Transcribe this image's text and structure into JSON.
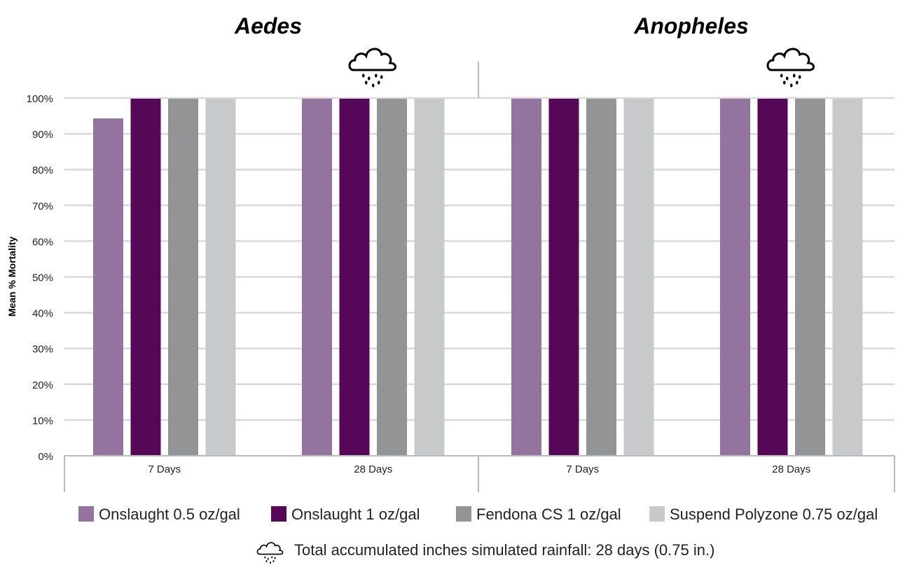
{
  "chart_data": {
    "type": "bar",
    "ylabel": "Mean % Mortality",
    "ylim": [
      0,
      100
    ],
    "yticks": [
      "0%",
      "10%",
      "20%",
      "30%",
      "40%",
      "50%",
      "60%",
      "70%",
      "80%",
      "90%",
      "100%"
    ],
    "grid": true,
    "legend_placement": "bottom",
    "panels": [
      {
        "title": "Aedes",
        "categories": [
          "7 Days",
          "28 Days"
        ],
        "rain_icon_on": "28 Days"
      },
      {
        "title": "Anopheles",
        "categories": [
          "7 Days",
          "28 Days"
        ],
        "rain_icon_on": "28 Days"
      }
    ],
    "series": [
      {
        "name": "Onslaught 0.5 oz/gal",
        "color": "#92749e",
        "values": [
          94.5,
          100,
          100,
          100
        ]
      },
      {
        "name": "Onslaught 1 oz/gal",
        "color": "#560757",
        "values": [
          100,
          100,
          100,
          100
        ]
      },
      {
        "name": "Fendona CS 1 oz/gal",
        "color": "#939495",
        "values": [
          100,
          100,
          100,
          100
        ]
      },
      {
        "name": "Suspend Polyzone 0.75 oz/gal",
        "color": "#c8c9cb",
        "values": [
          100,
          100,
          100,
          100
        ]
      }
    ],
    "footnote": "Total accumulated inches simulated rainfall: 28 days (0.75 in.)",
    "footnote_icon": "rain-cloud-icon"
  }
}
